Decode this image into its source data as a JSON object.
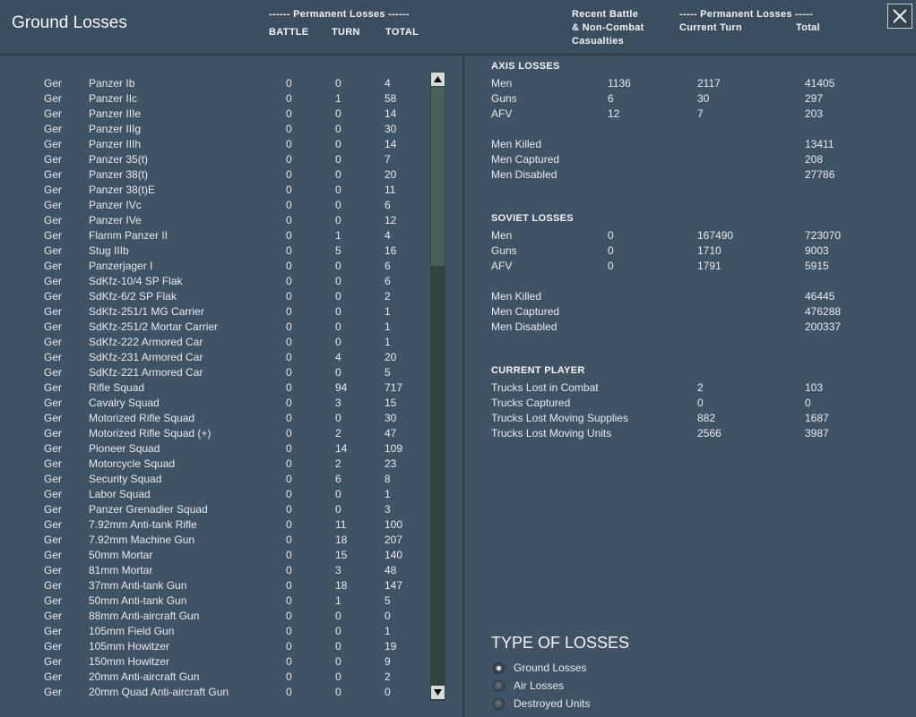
{
  "header": {
    "title": "Ground Losses",
    "permanent_left": "------ Permanent Losses ------",
    "battle": "BATTLE",
    "turn": "TURN",
    "total": "TOTAL",
    "recent_1": "Recent Battle",
    "recent_2": "& Non-Combat",
    "recent_3": "Casualties",
    "permanent_right": "----- Permanent Losses -----",
    "current_turn": "Current Turn",
    "total_right": "Total"
  },
  "table": {
    "rows": [
      [
        "Ger",
        "Panzer Ib",
        0,
        0,
        4
      ],
      [
        "Ger",
        "Panzer IIc",
        0,
        1,
        58
      ],
      [
        "Ger",
        "Panzer IIIe",
        0,
        0,
        14
      ],
      [
        "Ger",
        "Panzer IIIg",
        0,
        0,
        30
      ],
      [
        "Ger",
        "Panzer IIIh",
        0,
        0,
        14
      ],
      [
        "Ger",
        "Panzer 35(t)",
        0,
        0,
        7
      ],
      [
        "Ger",
        "Panzer 38(t)",
        0,
        0,
        20
      ],
      [
        "Ger",
        "Panzer 38(t)E",
        0,
        0,
        11
      ],
      [
        "Ger",
        "Panzer IVc",
        0,
        0,
        6
      ],
      [
        "Ger",
        "Panzer IVe",
        0,
        0,
        12
      ],
      [
        "Ger",
        "Flamm Panzer II",
        0,
        1,
        4
      ],
      [
        "Ger",
        "Stug IIIb",
        0,
        5,
        16
      ],
      [
        "Ger",
        "Panzerjager I",
        0,
        0,
        6
      ],
      [
        "Ger",
        "SdKfz-10/4 SP Flak",
        0,
        0,
        6
      ],
      [
        "Ger",
        "SdKfz-6/2 SP Flak",
        0,
        0,
        2
      ],
      [
        "Ger",
        "SdKfz-251/1 MG Carrier",
        0,
        0,
        1
      ],
      [
        "Ger",
        "SdKfz-251/2 Mortar Carrier",
        0,
        0,
        1
      ],
      [
        "Ger",
        "SdKfz-222 Armored Car",
        0,
        0,
        1
      ],
      [
        "Ger",
        "SdKfz-231 Armored Car",
        0,
        4,
        20
      ],
      [
        "Ger",
        "SdKfz-221 Armored Car",
        0,
        0,
        5
      ],
      [
        "Ger",
        "Rifle Squad",
        0,
        94,
        717
      ],
      [
        "Ger",
        "Cavalry Squad",
        0,
        3,
        15
      ],
      [
        "Ger",
        "Motorized Rifle Squad",
        0,
        0,
        30
      ],
      [
        "Ger",
        "Motorized Rifle Squad (+)",
        0,
        2,
        47
      ],
      [
        "Ger",
        "Pioneer Squad",
        0,
        14,
        109
      ],
      [
        "Ger",
        "Motorcycle Squad",
        0,
        2,
        23
      ],
      [
        "Ger",
        "Security Squad",
        0,
        6,
        8
      ],
      [
        "Ger",
        "Labor Squad",
        0,
        0,
        1
      ],
      [
        "Ger",
        "Panzer Grenadier Squad",
        0,
        0,
        3
      ],
      [
        "Ger",
        "7.92mm Anti-tank Rifle",
        0,
        11,
        100
      ],
      [
        "Ger",
        "7.92mm Machine Gun",
        0,
        18,
        207
      ],
      [
        "Ger",
        "50mm Mortar",
        0,
        15,
        140
      ],
      [
        "Ger",
        "81mm Mortar",
        0,
        3,
        48
      ],
      [
        "Ger",
        "37mm Anti-tank Gun",
        0,
        18,
        147
      ],
      [
        "Ger",
        "50mm Anti-tank Gun",
        0,
        1,
        5
      ],
      [
        "Ger",
        "88mm Anti-aircraft Gun",
        0,
        0,
        0
      ],
      [
        "Ger",
        "105mm Field Gun",
        0,
        0,
        1
      ],
      [
        "Ger",
        "105mm Howitzer",
        0,
        0,
        19
      ],
      [
        "Ger",
        "150mm Howitzer",
        0,
        0,
        9
      ],
      [
        "Ger",
        "20mm Anti-aircraft Gun",
        0,
        0,
        2
      ],
      [
        "Ger",
        "20mm Quad Anti-aircraft Gun",
        0,
        0,
        0
      ]
    ]
  },
  "sections": [
    {
      "title": "AXIS LOSSES",
      "rows": [
        {
          "label": "Men",
          "recent": 1136,
          "turn": 2117,
          "total": 41405
        },
        {
          "label": "Guns",
          "recent": 6,
          "turn": 30,
          "total": 297
        },
        {
          "label": "AFV",
          "recent": 12,
          "turn": 7,
          "total": 203
        },
        {
          "label": "Men Killed",
          "total": 13411
        },
        {
          "label": "Men Captured",
          "total": 208
        },
        {
          "label": "Men Disabled",
          "total": 27786
        }
      ]
    },
    {
      "title": "SOVIET LOSSES",
      "rows": [
        {
          "label": "Men",
          "recent": 0,
          "turn": 167490,
          "total": 723070
        },
        {
          "label": "Guns",
          "recent": 0,
          "turn": 1710,
          "total": 9003
        },
        {
          "label": "AFV",
          "recent": 0,
          "turn": 1791,
          "total": 5915
        },
        {
          "label": "Men Killed",
          "total": 46445
        },
        {
          "label": "Men Captured",
          "total": 476288
        },
        {
          "label": "Men Disabled",
          "total": 200337
        }
      ]
    },
    {
      "title": "CURRENT PLAYER",
      "rows": [
        {
          "label": "Trucks Lost in Combat",
          "turn": 2,
          "total": 103
        },
        {
          "label": "Trucks Captured",
          "turn": 0,
          "total": 0
        },
        {
          "label": "Trucks Lost Moving Supplies",
          "turn": 882,
          "total": 1687
        },
        {
          "label": "Trucks Lost Moving Units",
          "turn": 2566,
          "total": 3987
        }
      ]
    }
  ],
  "loss_types": {
    "title": "TYPE OF LOSSES",
    "options": [
      "Ground Losses",
      "Air Losses",
      "Destroyed Units"
    ],
    "selected": 0
  }
}
